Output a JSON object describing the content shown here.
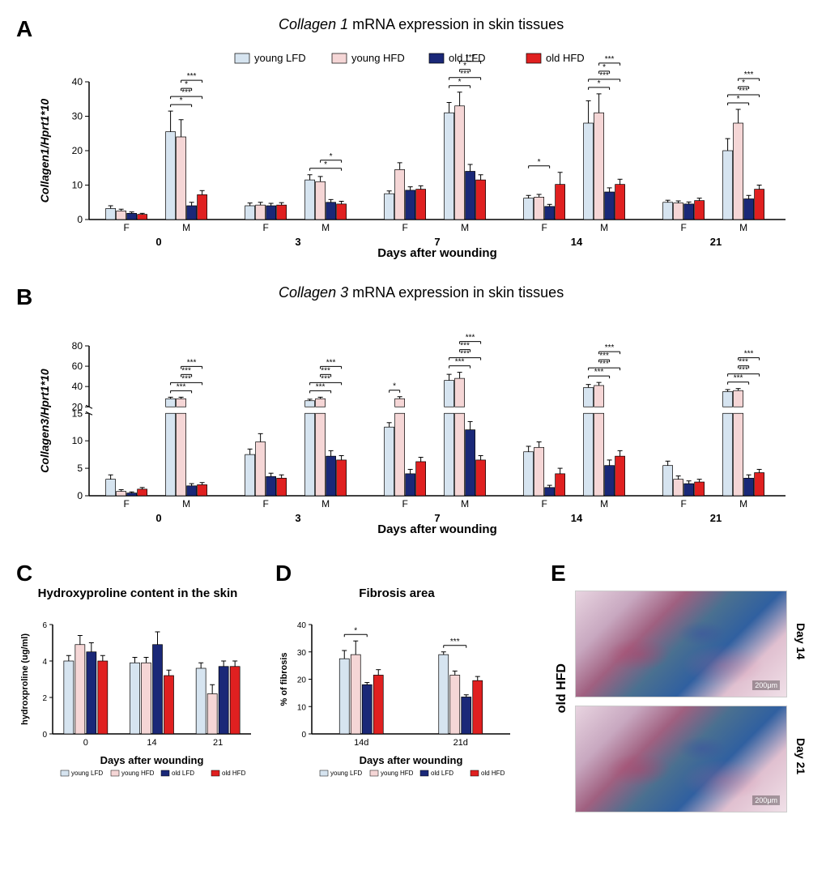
{
  "legend": {
    "items": [
      {
        "label": "young LFD",
        "color": "#d6e4f0"
      },
      {
        "label": "young HFD",
        "color": "#f5d6d6"
      },
      {
        "label": "old LFD",
        "color": "#1a2878"
      },
      {
        "label": "old HFD",
        "color": "#e02020"
      }
    ]
  },
  "panelA": {
    "label": "A",
    "title_italic": "Collagen 1",
    "title_rest": " mRNA expression in skin tissues",
    "ylabel": "Collagen1/Hprt1*10",
    "xlabel": "Days after wounding",
    "ylim": [
      0,
      40
    ],
    "ytick_step": 10,
    "days": [
      "0",
      "3",
      "7",
      "14",
      "21"
    ],
    "subgroups": [
      "F",
      "M"
    ],
    "data": {
      "0": {
        "F": {
          "vals": [
            3.2,
            2.5,
            1.8,
            1.5
          ],
          "err": [
            0.8,
            0.5,
            0.4,
            0.3
          ]
        },
        "M": {
          "vals": [
            25.5,
            24,
            4,
            7.2
          ],
          "err": [
            6,
            5,
            1,
            1.2
          ]
        },
        "sig": [
          {
            "from": 0,
            "to": 2,
            "label": "*"
          },
          {
            "from": 0,
            "to": 3,
            "label": "***"
          },
          {
            "from": 1,
            "to": 2,
            "label": "*"
          },
          {
            "from": 1,
            "to": 3,
            "label": "***"
          }
        ]
      },
      "3": {
        "F": {
          "vals": [
            4,
            4.2,
            4,
            4.2
          ],
          "err": [
            0.8,
            0.8,
            0.7,
            0.7
          ]
        },
        "M": {
          "vals": [
            11.5,
            11,
            5,
            4.5
          ],
          "err": [
            1.5,
            1.5,
            0.8,
            0.8
          ]
        },
        "sig": [
          {
            "from": 0,
            "to": 3,
            "label": "*"
          },
          {
            "from": 1,
            "to": 3,
            "label": "*"
          }
        ]
      },
      "7": {
        "F": {
          "vals": [
            7.5,
            14.5,
            8.5,
            8.8
          ],
          "err": [
            0.8,
            2,
            1,
            1
          ]
        },
        "M": {
          "vals": [
            31,
            33,
            14,
            11.5
          ],
          "err": [
            3,
            4,
            2,
            1.5
          ]
        },
        "sig": [
          {
            "from": 0,
            "to": 2,
            "label": "*"
          },
          {
            "from": 0,
            "to": 3,
            "label": "***"
          },
          {
            "from": 1,
            "to": 2,
            "label": "*"
          },
          {
            "from": 1,
            "to": 3,
            "label": "***"
          }
        ]
      },
      "14": {
        "F": {
          "vals": [
            6.2,
            6.5,
            3.8,
            10.2
          ],
          "err": [
            0.8,
            0.8,
            0.6,
            3.5
          ],
          "sigF": [
            {
              "from": 0,
              "to": 2,
              "label": "*"
            }
          ]
        },
        "M": {
          "vals": [
            28,
            31,
            8,
            10.2
          ],
          "err": [
            6.5,
            5.5,
            1.2,
            1.5
          ]
        },
        "sig": [
          {
            "from": 0,
            "to": 2,
            "label": "*"
          },
          {
            "from": 0,
            "to": 3,
            "label": "***"
          },
          {
            "from": 1,
            "to": 2,
            "label": "*"
          },
          {
            "from": 1,
            "to": 3,
            "label": "***"
          }
        ]
      },
      "21": {
        "F": {
          "vals": [
            5,
            4.8,
            4.5,
            5.5
          ],
          "err": [
            0.6,
            0.6,
            0.6,
            0.7
          ]
        },
        "M": {
          "vals": [
            20,
            28,
            6,
            8.8
          ],
          "err": [
            3.5,
            4,
            1,
            1.2
          ]
        },
        "sig": [
          {
            "from": 0,
            "to": 2,
            "label": "*"
          },
          {
            "from": 0,
            "to": 3,
            "label": "***"
          },
          {
            "from": 1,
            "to": 2,
            "label": "*"
          },
          {
            "from": 1,
            "to": 3,
            "label": "***"
          }
        ]
      }
    }
  },
  "panelB": {
    "label": "B",
    "title_italic": "Collagen 3",
    "title_rest": " mRNA expression in skin tissues",
    "ylabel": "Collagen3/Hprt1*10",
    "xlabel": "Days after wounding",
    "break_low": 15,
    "break_high": 20,
    "ylim_high": 80,
    "ytick_low": [
      0,
      5,
      10,
      15
    ],
    "ytick_high": [
      20,
      40,
      60,
      80
    ],
    "days": [
      "0",
      "3",
      "7",
      "14",
      "21"
    ],
    "subgroups": [
      "F",
      "M"
    ],
    "data": {
      "0": {
        "F": {
          "vals": [
            3,
            0.8,
            0.5,
            1.2
          ],
          "err": [
            0.8,
            0.3,
            0.2,
            0.3
          ]
        },
        "M": {
          "vals": [
            28,
            28,
            1.8,
            2
          ],
          "err": [
            1.5,
            1.5,
            0.4,
            0.4
          ]
        },
        "sig": [
          {
            "from": 0,
            "to": 2,
            "label": "***"
          },
          {
            "from": 0,
            "to": 3,
            "label": "***"
          },
          {
            "from": 1,
            "to": 2,
            "label": "***"
          },
          {
            "from": 1,
            "to": 3,
            "label": "***"
          }
        ]
      },
      "3": {
        "F": {
          "vals": [
            7.5,
            9.8,
            3.5,
            3.2
          ],
          "err": [
            1,
            1.5,
            0.6,
            0.6
          ]
        },
        "M": {
          "vals": [
            26,
            28,
            7.2,
            6.5
          ],
          "err": [
            1.5,
            1.5,
            1,
            0.8
          ]
        },
        "sig": [
          {
            "from": 0,
            "to": 2,
            "label": "***"
          },
          {
            "from": 0,
            "to": 3,
            "label": "***"
          },
          {
            "from": 1,
            "to": 2,
            "label": "***"
          },
          {
            "from": 1,
            "to": 3,
            "label": "***"
          }
        ]
      },
      "7": {
        "F": {
          "vals": [
            12.5,
            28,
            4,
            6.2
          ],
          "err": [
            0.8,
            2,
            0.8,
            0.8
          ],
          "sigF": [
            {
              "from": 0,
              "to": 1,
              "label": "*"
            }
          ]
        },
        "M": {
          "vals": [
            46,
            48,
            12,
            6.5
          ],
          "err": [
            6,
            6,
            1.5,
            0.8
          ]
        },
        "sig": [
          {
            "from": 0,
            "to": 2,
            "label": "***"
          },
          {
            "from": 0,
            "to": 3,
            "label": "***"
          },
          {
            "from": 1,
            "to": 2,
            "label": "***"
          },
          {
            "from": 1,
            "to": 3,
            "label": "***"
          }
        ]
      },
      "14": {
        "F": {
          "vals": [
            8,
            8.8,
            1.5,
            4
          ],
          "err": [
            1,
            1,
            0.4,
            1
          ]
        },
        "M": {
          "vals": [
            39,
            41,
            5.5,
            7.2
          ],
          "err": [
            3,
            3,
            1,
            1
          ]
        },
        "sig": [
          {
            "from": 0,
            "to": 2,
            "label": "***"
          },
          {
            "from": 0,
            "to": 3,
            "label": "***"
          },
          {
            "from": 1,
            "to": 2,
            "label": "***"
          },
          {
            "from": 1,
            "to": 3,
            "label": "***"
          }
        ]
      },
      "21": {
        "F": {
          "vals": [
            5.5,
            3,
            2.2,
            2.5
          ],
          "err": [
            0.8,
            0.6,
            0.5,
            0.5
          ]
        },
        "M": {
          "vals": [
            35,
            36,
            3.2,
            4.2
          ],
          "err": [
            2,
            2,
            0.6,
            0.6
          ]
        },
        "sig": [
          {
            "from": 0,
            "to": 2,
            "label": "***"
          },
          {
            "from": 0,
            "to": 3,
            "label": "***"
          },
          {
            "from": 1,
            "to": 2,
            "label": "***"
          },
          {
            "from": 1,
            "to": 3,
            "label": "***"
          }
        ]
      }
    }
  },
  "panelC": {
    "label": "C",
    "title": "Hydroxyproline content in the skin",
    "ylabel": "hydroxproline (ug/ml)",
    "xlabel": "Days after wounding",
    "ylim": [
      0,
      6
    ],
    "yticks": [
      0,
      2,
      4,
      6
    ],
    "days": [
      "0",
      "14",
      "21"
    ],
    "data": {
      "0": {
        "vals": [
          4,
          4.9,
          4.5,
          4
        ],
        "err": [
          0.3,
          0.5,
          0.5,
          0.3
        ]
      },
      "14": {
        "vals": [
          3.9,
          3.9,
          4.9,
          3.2
        ],
        "err": [
          0.3,
          0.3,
          0.7,
          0.3
        ]
      },
      "21": {
        "vals": [
          3.6,
          2.2,
          3.7,
          3.7
        ],
        "err": [
          0.3,
          0.5,
          0.3,
          0.3
        ]
      }
    }
  },
  "panelD": {
    "label": "D",
    "title": "Fibrosis area",
    "ylabel": "% of fibrosis",
    "xlabel": "Days after wounding",
    "ylim": [
      0,
      40
    ],
    "yticks": [
      0,
      10,
      20,
      30,
      40
    ],
    "days": [
      "14d",
      "21d"
    ],
    "data": {
      "14d": {
        "vals": [
          27.5,
          29,
          18,
          21.5
        ],
        "err": [
          3,
          5,
          0.8,
          2
        ],
        "sig": [
          {
            "from": 0,
            "to": 2,
            "label": "*"
          }
        ]
      },
      "21d": {
        "vals": [
          29,
          21.5,
          13.5,
          19.5
        ],
        "err": [
          1,
          1.5,
          0.8,
          1.5
        ],
        "sig": [
          {
            "from": 0,
            "to": 2,
            "label": "***"
          }
        ]
      }
    }
  },
  "panelE": {
    "label": "E",
    "side_label": "old HFD",
    "images": [
      {
        "day_label": "Day 14",
        "scale": "200μm"
      },
      {
        "day_label": "Day 21",
        "scale": "200μm"
      }
    ]
  },
  "colors": {
    "series": [
      "#d6e4f0",
      "#f5d6d6",
      "#1a2878",
      "#e02020"
    ],
    "stroke": "#000000"
  }
}
